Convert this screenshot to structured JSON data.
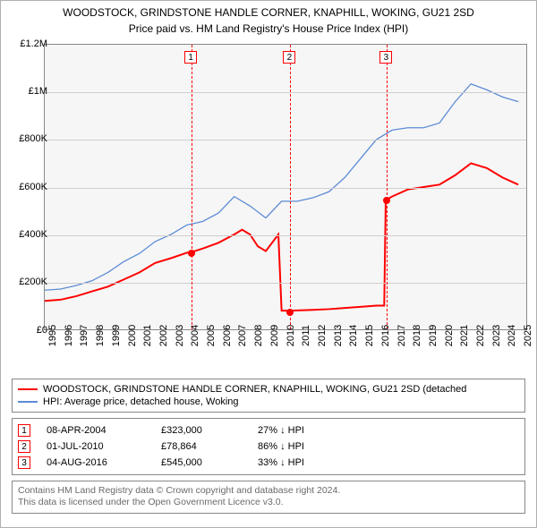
{
  "title": "WOODSTOCK, GRINDSTONE HANDLE CORNER, KNAPHILL, WOKING, GU21 2SD",
  "subtitle": "Price paid vs. HM Land Registry's House Price Index (HPI)",
  "chart": {
    "type": "line",
    "background_color": "#f6f6f6",
    "grid_color": "#cfcfcf",
    "border_color": "#888888",
    "xlim": [
      1995,
      2025.5
    ],
    "ylim": [
      0,
      1200000
    ],
    "ytick_step": 200000,
    "yticks": [
      {
        "v": 0,
        "label": "£0"
      },
      {
        "v": 200000,
        "label": "£200K"
      },
      {
        "v": 400000,
        "label": "£400K"
      },
      {
        "v": 600000,
        "label": "£600K"
      },
      {
        "v": 800000,
        "label": "£800K"
      },
      {
        "v": 1000000,
        "label": "£1M"
      },
      {
        "v": 1200000,
        "label": "£1.2M"
      }
    ],
    "xticks": [
      "1995",
      "1996",
      "1997",
      "1998",
      "1999",
      "2000",
      "2001",
      "2002",
      "2003",
      "2004",
      "2005",
      "2006",
      "2007",
      "2008",
      "2009",
      "2010",
      "2011",
      "2012",
      "2013",
      "2014",
      "2015",
      "2016",
      "2017",
      "2018",
      "2019",
      "2020",
      "2021",
      "2022",
      "2023",
      "2024",
      "2025"
    ],
    "series": [
      {
        "name": "WOODSTOCK, GRINDSTONE HANDLE CORNER, KNAPHILL, WOKING, GU21 2SD (detached",
        "color": "#ff0000",
        "line_width": 2,
        "data": [
          [
            1995,
            120000
          ],
          [
            1996,
            125000
          ],
          [
            1997,
            140000
          ],
          [
            1998,
            160000
          ],
          [
            1999,
            180000
          ],
          [
            2000,
            210000
          ],
          [
            2001,
            240000
          ],
          [
            2002,
            280000
          ],
          [
            2003,
            300000
          ],
          [
            2004,
            323000
          ],
          [
            2004.5,
            330000
          ],
          [
            2005,
            340000
          ],
          [
            2006,
            365000
          ],
          [
            2007,
            400000
          ],
          [
            2007.5,
            420000
          ],
          [
            2008,
            400000
          ],
          [
            2008.5,
            350000
          ],
          [
            2009,
            330000
          ],
          [
            2009.8,
            400000
          ],
          [
            2010,
            78864
          ],
          [
            2010.5,
            78864
          ],
          [
            2011,
            80000
          ],
          [
            2012,
            82000
          ],
          [
            2013,
            85000
          ],
          [
            2014,
            90000
          ],
          [
            2015,
            95000
          ],
          [
            2016,
            100000
          ],
          [
            2016.5,
            100000
          ],
          [
            2016.6,
            545000
          ],
          [
            2017,
            560000
          ],
          [
            2018,
            590000
          ],
          [
            2019,
            600000
          ],
          [
            2020,
            610000
          ],
          [
            2021,
            650000
          ],
          [
            2022,
            700000
          ],
          [
            2023,
            680000
          ],
          [
            2024,
            640000
          ],
          [
            2025,
            610000
          ]
        ]
      },
      {
        "name": "HPI: Average price, detached house, Woking",
        "color": "#5c8bd6",
        "line_width": 1.3,
        "data": [
          [
            1995,
            165000
          ],
          [
            1996,
            170000
          ],
          [
            1997,
            185000
          ],
          [
            1998,
            205000
          ],
          [
            1999,
            240000
          ],
          [
            2000,
            285000
          ],
          [
            2001,
            320000
          ],
          [
            2002,
            370000
          ],
          [
            2003,
            400000
          ],
          [
            2004,
            440000
          ],
          [
            2005,
            455000
          ],
          [
            2006,
            490000
          ],
          [
            2007,
            560000
          ],
          [
            2008,
            520000
          ],
          [
            2009,
            470000
          ],
          [
            2010,
            540000
          ],
          [
            2011,
            540000
          ],
          [
            2012,
            555000
          ],
          [
            2013,
            580000
          ],
          [
            2014,
            640000
          ],
          [
            2015,
            720000
          ],
          [
            2016,
            800000
          ],
          [
            2017,
            840000
          ],
          [
            2018,
            850000
          ],
          [
            2019,
            850000
          ],
          [
            2020,
            870000
          ],
          [
            2021,
            960000
          ],
          [
            2022,
            1035000
          ],
          [
            2023,
            1010000
          ],
          [
            2024,
            980000
          ],
          [
            2025,
            960000
          ]
        ]
      }
    ],
    "markers": [
      {
        "n": "1",
        "x": 2004.27,
        "y": 323000
      },
      {
        "n": "2",
        "x": 2010.5,
        "y": 78864
      },
      {
        "n": "3",
        "x": 2016.6,
        "y": 545000
      }
    ]
  },
  "legend": {
    "items": [
      {
        "color": "#ff0000",
        "label": "WOODSTOCK, GRINDSTONE HANDLE CORNER, KNAPHILL, WOKING, GU21 2SD (detached"
      },
      {
        "color": "#5c8bd6",
        "label": "HPI: Average price, detached house, Woking"
      }
    ]
  },
  "events": [
    {
      "n": "1",
      "date": "08-APR-2004",
      "price": "£323,000",
      "delta": "27% ↓ HPI"
    },
    {
      "n": "2",
      "date": "01-JUL-2010",
      "price": "£78,864",
      "delta": "86% ↓ HPI"
    },
    {
      "n": "3",
      "date": "04-AUG-2016",
      "price": "£545,000",
      "delta": "33% ↓ HPI"
    }
  ],
  "footer": {
    "line1": "Contains HM Land Registry data © Crown copyright and database right 2024.",
    "line2": "This data is licensed under the Open Government Licence v3.0."
  },
  "colors": {
    "marker_border": "#ff0000",
    "text": "#000000",
    "footer_text": "#6a6a6a"
  }
}
